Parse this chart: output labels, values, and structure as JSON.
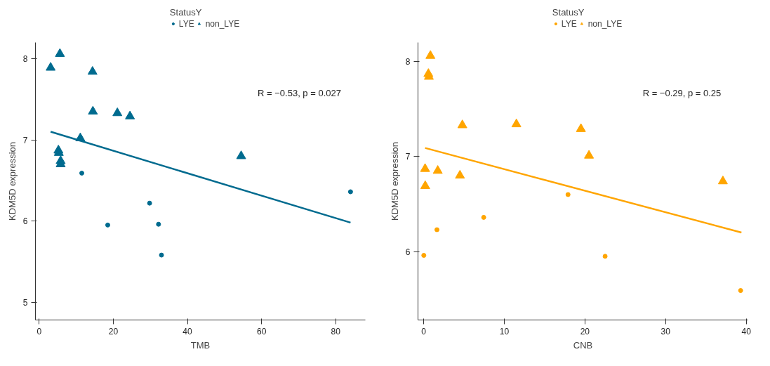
{
  "chart_data": [
    {
      "type": "scatter",
      "xlabel": "TMB",
      "ylabel": "KDM5D expression",
      "legend_title": "StatusY",
      "legend": "top",
      "grid": false,
      "annotations": [
        "R = −0.53, p = 0.027"
      ],
      "xlim": [
        -1,
        88
      ],
      "ylim": [
        4.78,
        8.2
      ],
      "xticks": [
        0,
        20,
        40,
        60,
        80
      ],
      "yticks": [
        5,
        6,
        7,
        8
      ],
      "series": [
        {
          "name": "LYE",
          "color": "#006b8f",
          "marker": "circle",
          "x": [
            11.5,
            29.8,
            18.5,
            32.2,
            33.0,
            84.0
          ],
          "values": [
            6.59,
            6.22,
            5.95,
            5.96,
            5.58,
            6.36
          ]
        },
        {
          "name": "non_LYE",
          "color": "#006b8f",
          "marker": "triangle",
          "x": [
            3.1,
            5.6,
            14.4,
            14.5,
            21.1,
            24.5,
            11.1,
            5.2,
            5.3,
            5.8,
            5.8,
            54.5
          ],
          "values": [
            7.89,
            8.06,
            7.84,
            7.35,
            7.33,
            7.29,
            7.02,
            6.87,
            6.84,
            6.74,
            6.7,
            6.8
          ]
        },
        {
          "type": "line",
          "color": "#006b8f",
          "x": [
            3.1,
            84.0
          ],
          "values": [
            7.1,
            5.98
          ]
        }
      ]
    },
    {
      "type": "scatter",
      "xlabel": "CNB",
      "ylabel": "KDM5D expression",
      "legend_title": "StatusY",
      "legend": "top",
      "grid": false,
      "annotations": [
        "R = −0.29, p = 0.25"
      ],
      "xlim": [
        -0.7,
        40.2
      ],
      "ylim": [
        5.28,
        8.2
      ],
      "xticks": [
        0,
        10,
        20,
        30,
        40
      ],
      "yticks": [
        6,
        7,
        8
      ],
      "series": [
        {
          "name": "LYE",
          "color": "#ffa500",
          "marker": "circle",
          "x": [
            17.9,
            7.45,
            1.65,
            0.02,
            22.5,
            39.3
          ],
          "values": [
            6.6,
            6.36,
            6.23,
            5.96,
            5.95,
            5.59
          ]
        },
        {
          "name": "non_LYE",
          "color": "#ffa500",
          "marker": "triangle",
          "x": [
            0.84,
            0.59,
            0.65,
            4.8,
            11.5,
            19.5,
            20.5,
            0.18,
            1.75,
            4.5,
            0.2,
            37.1
          ],
          "values": [
            8.06,
            7.87,
            7.84,
            7.33,
            7.34,
            7.29,
            7.01,
            6.87,
            6.85,
            6.8,
            6.69,
            6.74
          ]
        },
        {
          "type": "line",
          "color": "#ffa500",
          "x": [
            0.18,
            39.4
          ],
          "values": [
            7.09,
            6.2
          ]
        }
      ]
    }
  ]
}
